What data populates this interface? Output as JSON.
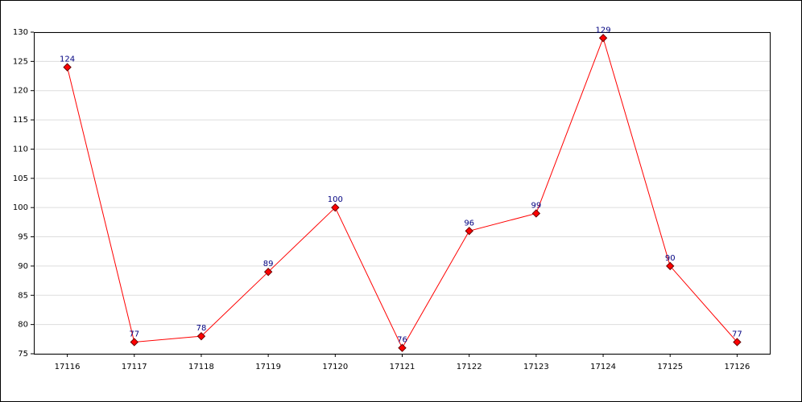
{
  "chart_data": {
    "type": "line",
    "categories": [
      "17116",
      "17117",
      "17118",
      "17119",
      "17120",
      "17121",
      "17122",
      "17123",
      "17124",
      "17125",
      "17126"
    ],
    "series": [
      {
        "color": "#ff0000",
        "values": [
          124,
          77,
          78,
          89,
          100,
          76,
          96,
          99,
          129,
          90,
          77
        ]
      }
    ],
    "ylim": [
      75,
      130
    ],
    "yticks": [
      75,
      80,
      85,
      90,
      95,
      100,
      105,
      110,
      115,
      120,
      125,
      130
    ],
    "grid": true
  }
}
